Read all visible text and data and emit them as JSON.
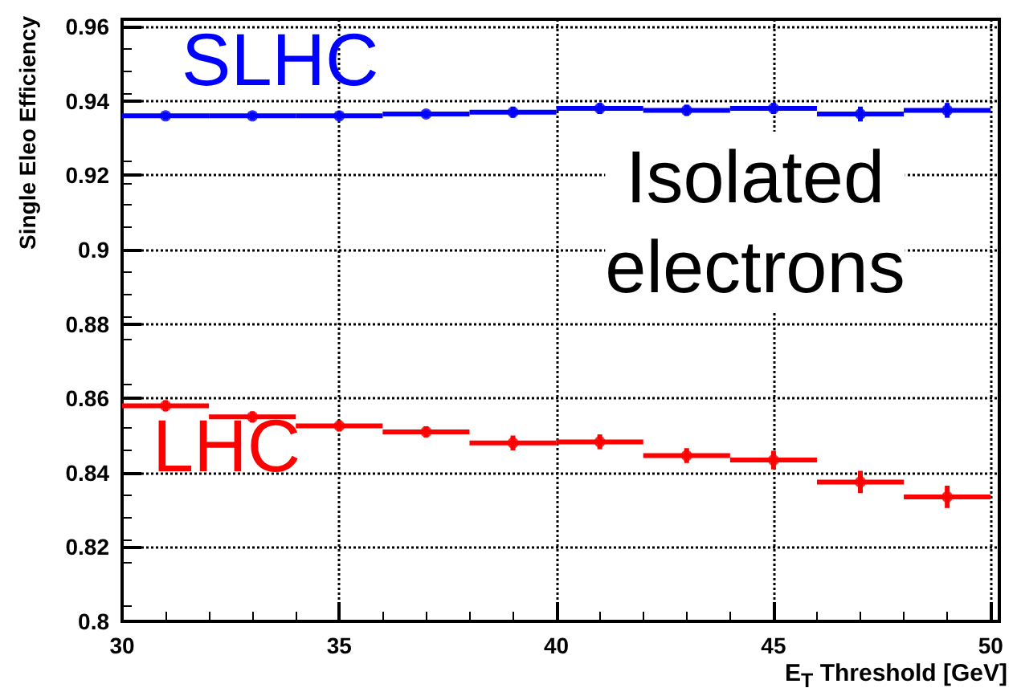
{
  "chart_data": {
    "type": "scatter",
    "xlabel": "E$_{T}$ Threshold [GeV]",
    "ylabel": "Single Eleo Efficiency",
    "x": [
      31,
      33,
      35,
      37,
      39,
      41,
      43,
      45,
      47,
      49
    ],
    "series": [
      {
        "name": "SLHC",
        "color": "#0000ff",
        "values": [
          0.936,
          0.936,
          0.936,
          0.9365,
          0.937,
          0.938,
          0.9375,
          0.938,
          0.9365,
          0.9375
        ],
        "xerrors": [
          1,
          1,
          1,
          1,
          1,
          1,
          1,
          1,
          1,
          1
        ],
        "errors": [
          0.001,
          0.001,
          0.001,
          0.001,
          0.0015,
          0.0015,
          0.0015,
          0.0015,
          0.002,
          0.002
        ]
      },
      {
        "name": "LHC",
        "color": "#ff0000",
        "values": [
          0.858,
          0.855,
          0.8526,
          0.851,
          0.848,
          0.8483,
          0.8446,
          0.8434,
          0.8375,
          0.8335
        ],
        "xerrors": [
          1,
          1,
          1,
          1,
          1,
          1,
          1,
          1,
          1,
          1
        ],
        "errors": [
          0.0015,
          0.0015,
          0.0015,
          0.0015,
          0.002,
          0.002,
          0.002,
          0.0025,
          0.003,
          0.003
        ]
      }
    ],
    "xlim": [
      30,
      50.2
    ],
    "xticks": [
      30,
      35,
      40,
      45,
      50
    ],
    "ylim": [
      0.8,
      0.962
    ],
    "yticks": [
      0.8,
      0.82,
      0.84,
      0.86,
      0.88,
      0.9,
      0.92,
      0.94,
      0.96
    ],
    "grid": true,
    "annotations": [
      "Isolated\nelectrons"
    ]
  }
}
